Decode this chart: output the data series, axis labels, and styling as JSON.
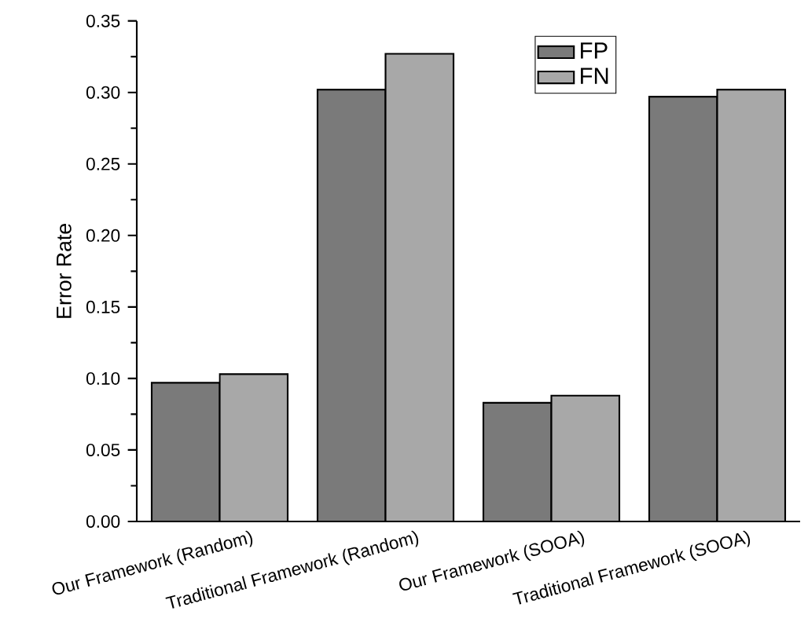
{
  "chart_data": {
    "type": "bar",
    "ylabel": "Error Rate",
    "categories": [
      "Our Framework (Random)",
      "Traditional Framework (Random)",
      "Our Framework (SOOA)",
      "Traditional Framework (SOOA)"
    ],
    "series": [
      {
        "name": "FP",
        "color": "#7a7a7a",
        "values": [
          0.097,
          0.302,
          0.083,
          0.297
        ]
      },
      {
        "name": "FN",
        "color": "#a8a8a8",
        "values": [
          0.103,
          0.327,
          0.088,
          0.302
        ]
      }
    ],
    "ylim": [
      0,
      0.35
    ],
    "yticks": [
      {
        "value": 0,
        "label": "0.00"
      },
      {
        "value": 0.05,
        "label": "0.05"
      },
      {
        "value": 0.1,
        "label": "0.10"
      },
      {
        "value": 0.15,
        "label": "0.15"
      },
      {
        "value": 0.2,
        "label": "0.20"
      },
      {
        "value": 0.25,
        "label": "0.25"
      },
      {
        "value": 0.3,
        "label": "0.30"
      },
      {
        "value": 0.35,
        "label": "0.35"
      }
    ],
    "grid": false,
    "legend": "top right"
  }
}
